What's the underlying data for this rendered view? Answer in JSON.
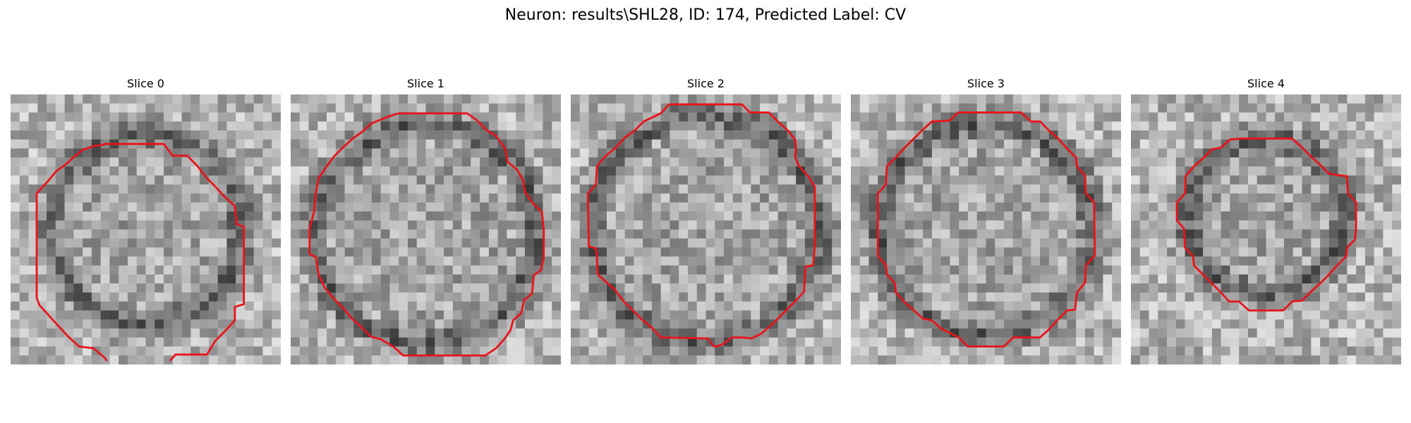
{
  "figure": {
    "title": "Neuron: results\\SHL28, ID: 174, Predicted Label: CV"
  },
  "panels": [
    {
      "title": "Slice 0"
    },
    {
      "title": "Slice 1"
    },
    {
      "title": "Slice 2"
    },
    {
      "title": "Slice 3"
    },
    {
      "title": "Slice 4"
    }
  ],
  "colors": {
    "contour": "#e8141a",
    "background": "#ffffff"
  }
}
